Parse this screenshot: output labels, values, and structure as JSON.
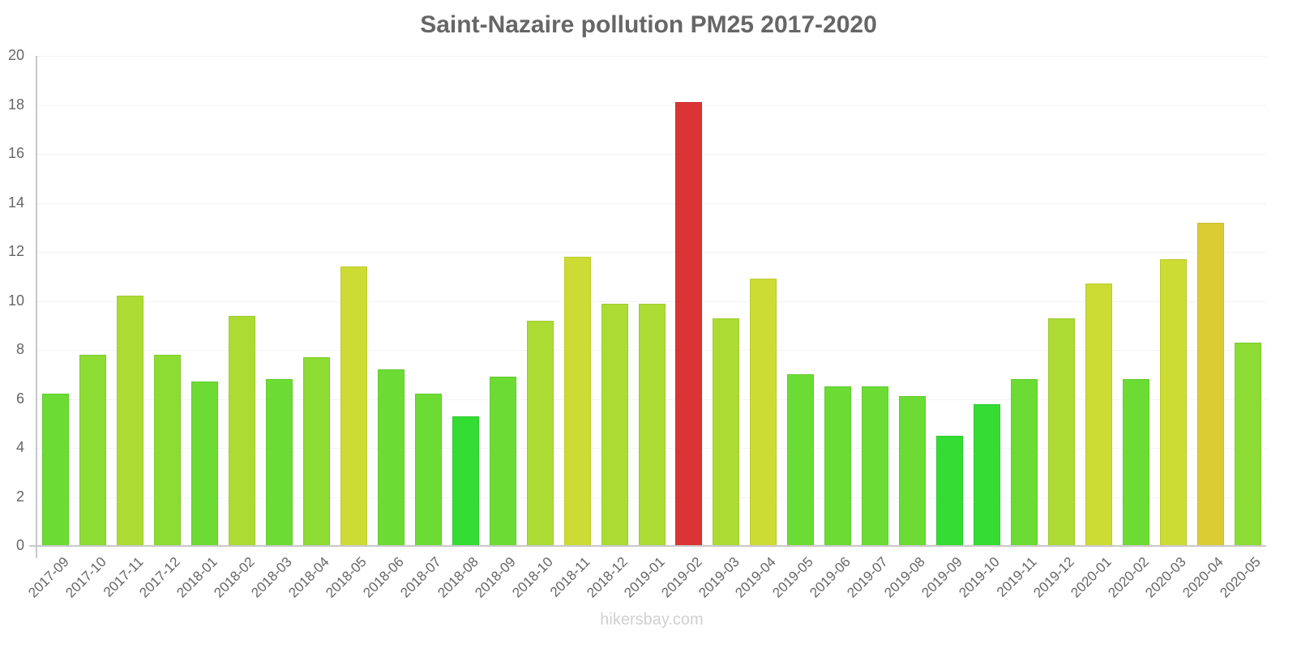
{
  "title": "Saint-Nazaire pollution PM25 2017-2020",
  "watermark": "hikersbay.com",
  "chart_data": {
    "type": "bar",
    "title": "Saint-Nazaire pollution PM25 2017-2020",
    "xlabel": "",
    "ylabel": "",
    "ylim": [
      0,
      20
    ],
    "yticks": [
      0,
      2,
      4,
      6,
      8,
      10,
      12,
      14,
      16,
      18,
      20
    ],
    "grid": true,
    "legend": null,
    "categories": [
      "2017-09",
      "2017-10",
      "2017-11",
      "2017-12",
      "2018-01",
      "2018-02",
      "2018-03",
      "2018-04",
      "2018-05",
      "2018-06",
      "2018-07",
      "2018-08",
      "2018-09",
      "2018-10",
      "2018-11",
      "2018-12",
      "2019-01",
      "2019-02",
      "2019-03",
      "2019-04",
      "2019-05",
      "2019-06",
      "2019-07",
      "2019-08",
      "2019-09",
      "2019-10",
      "2019-11",
      "2019-12",
      "2020-01",
      "2020-02",
      "2020-03",
      "2020-04",
      "2020-05"
    ],
    "values": [
      6.2,
      7.8,
      10.2,
      7.8,
      6.7,
      9.4,
      6.8,
      7.7,
      11.4,
      7.2,
      6.2,
      5.3,
      6.9,
      9.2,
      11.8,
      9.9,
      9.9,
      18.1,
      9.3,
      10.9,
      7.0,
      6.5,
      6.5,
      6.1,
      4.5,
      5.8,
      6.8,
      9.3,
      10.7,
      6.8,
      11.7,
      13.2,
      8.3
    ],
    "colors": [
      "#6cdc34",
      "#8cdc34",
      "#acdc34",
      "#8cdc34",
      "#6cdc34",
      "#acdc34",
      "#6cdc34",
      "#8cdc34",
      "#ccdc34",
      "#6cdc34",
      "#6cdc34",
      "#34dc34",
      "#6cdc34",
      "#acdc34",
      "#ccdc34",
      "#acdc34",
      "#acdc34",
      "#dc3434",
      "#acdc34",
      "#ccdc34",
      "#6cdc34",
      "#6cdc34",
      "#6cdc34",
      "#6cdc34",
      "#34dc34",
      "#34dc34",
      "#6cdc34",
      "#acdc34",
      "#ccdc34",
      "#6cdc34",
      "#ccdc34",
      "#dccc34",
      "#8cdc34"
    ]
  }
}
